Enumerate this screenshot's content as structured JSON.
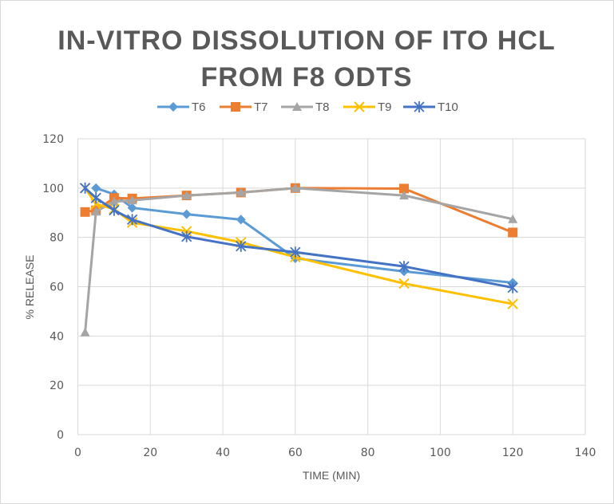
{
  "chart_data": {
    "type": "line",
    "title_lines": [
      "IN-VITRO DISSOLUTION OF ITO HCL",
      "FROM F8 ODTS"
    ],
    "xlabel": "TIME (MIN)",
    "ylabel": "% RELEASE",
    "xlim": [
      0,
      140
    ],
    "ylim": [
      0,
      120
    ],
    "x_ticks": [
      0,
      20,
      40,
      60,
      80,
      100,
      120,
      140
    ],
    "y_ticks": [
      0,
      20,
      40,
      60,
      80,
      100,
      120
    ],
    "grid": true,
    "legend_position": "top",
    "x": [
      2,
      5,
      10,
      15,
      30,
      45,
      60,
      90,
      120
    ],
    "series": [
      {
        "name": "T6",
        "color": "#5B9BD5",
        "marker": "diamond",
        "points": [
          [
            5,
            100
          ],
          [
            10,
            97.5
          ],
          [
            15,
            92
          ],
          [
            30,
            89.4
          ],
          [
            45,
            87.2
          ],
          [
            60,
            71.5
          ],
          [
            90,
            66.2
          ],
          [
            120,
            61.6
          ]
        ]
      },
      {
        "name": "T7",
        "color": "#ED7D31",
        "marker": "square",
        "points": [
          [
            2,
            90.3
          ],
          [
            5,
            91
          ],
          [
            10,
            96
          ],
          [
            15,
            95.8
          ],
          [
            30,
            97
          ],
          [
            45,
            98.2
          ],
          [
            60,
            100
          ],
          [
            90,
            99.8
          ],
          [
            120,
            82
          ]
        ]
      },
      {
        "name": "T8",
        "color": "#A5A5A5",
        "marker": "triangle",
        "points": [
          [
            2,
            41.5
          ],
          [
            5,
            90.5
          ],
          [
            10,
            94.5
          ],
          [
            15,
            95
          ],
          [
            30,
            97
          ],
          [
            45,
            98.2
          ],
          [
            60,
            100
          ],
          [
            90,
            97
          ],
          [
            120,
            87.4
          ]
        ]
      },
      {
        "name": "T9",
        "color": "#FFC000",
        "marker": "x",
        "points": [
          [
            2,
            100
          ],
          [
            5,
            93.5
          ],
          [
            10,
            91.5
          ],
          [
            15,
            86
          ],
          [
            30,
            82.5
          ],
          [
            45,
            78
          ],
          [
            60,
            72
          ],
          [
            90,
            61.3
          ],
          [
            120,
            53
          ]
        ]
      },
      {
        "name": "T10",
        "color": "#4472C4",
        "marker": "asterisk",
        "points": [
          [
            2,
            100
          ],
          [
            5,
            96
          ],
          [
            10,
            91
          ],
          [
            15,
            87.2
          ],
          [
            30,
            80.3
          ],
          [
            45,
            76.4
          ],
          [
            60,
            74
          ],
          [
            90,
            68.2
          ],
          [
            120,
            59.6
          ]
        ]
      }
    ]
  }
}
